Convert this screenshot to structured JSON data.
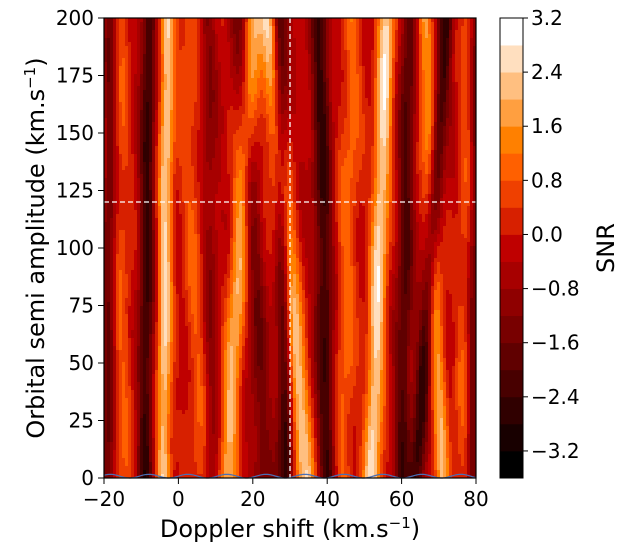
{
  "chart_data": {
    "type": "heatmap",
    "xlabel": "Doppler shift (km.s",
    "xlabel_sup": "−1",
    "xlabel_end": ")",
    "ylabel": "Orbital semi amplitude (km.s",
    "ylabel_sup": "−1",
    "ylabel_end": ")",
    "xlim": [
      -20,
      80
    ],
    "ylim": [
      0,
      200
    ],
    "x_ticks": [
      {
        "value": -20,
        "label": "−20"
      },
      {
        "value": 0,
        "label": "0"
      },
      {
        "value": 20,
        "label": "20"
      },
      {
        "value": 40,
        "label": "40"
      },
      {
        "value": 60,
        "label": "60"
      },
      {
        "value": 80,
        "label": "80"
      }
    ],
    "y_ticks": [
      {
        "value": 0,
        "label": "0"
      },
      {
        "value": 25,
        "label": "25"
      },
      {
        "value": 50,
        "label": "50"
      },
      {
        "value": 75,
        "label": "75"
      },
      {
        "value": 100,
        "label": "100"
      },
      {
        "value": 125,
        "label": "125"
      },
      {
        "value": 150,
        "label": "150"
      },
      {
        "value": 175,
        "label": "175"
      },
      {
        "value": 200,
        "label": "200"
      }
    ],
    "colorbar": {
      "label": "SNR",
      "colormap": "gist_heat",
      "min": -3.6,
      "max": 3.2,
      "levels": [
        -3.6,
        -3.2,
        -2.8,
        -2.4,
        -2.0,
        -1.6,
        -1.2,
        -0.8,
        -0.4,
        0.0,
        0.4,
        0.8,
        1.2,
        1.6,
        2.0,
        2.4,
        2.8,
        3.2
      ],
      "ticks": [
        {
          "value": 3.2,
          "label": "3.2"
        },
        {
          "value": 2.4,
          "label": "2.4"
        },
        {
          "value": 1.6,
          "label": "1.6"
        },
        {
          "value": 0.8,
          "label": "0.8"
        },
        {
          "value": 0.0,
          "label": "0.0"
        },
        {
          "value": -0.8,
          "label": "−0.8"
        },
        {
          "value": -1.6,
          "label": "−1.6"
        },
        {
          "value": -2.4,
          "label": "−2.4"
        },
        {
          "value": -3.2,
          "label": "−3.2"
        }
      ]
    },
    "crosshair": {
      "x": 30,
      "y": 120,
      "color": "#ffffff",
      "style": "dashed"
    },
    "bands": [
      {
        "x0": -4,
        "x1": -3,
        "width": 2.0,
        "amp": 2.6
      },
      {
        "x0": 13,
        "x1": 20,
        "width": 2.6,
        "amp": 2.3
      },
      {
        "x0": 34,
        "x1": 24,
        "width": 2.8,
        "amp": 2.7
      },
      {
        "x0": 52,
        "x1": 56,
        "width": 2.4,
        "amp": 2.8
      },
      {
        "x0": 71,
        "x1": 66,
        "width": 2.2,
        "amp": 2.0
      },
      {
        "x0": 6,
        "x1": 2,
        "width": 3.0,
        "amp": 1.0
      },
      {
        "x0": 44,
        "x1": 47,
        "width": 3.0,
        "amp": 1.2
      },
      {
        "x0": -15,
        "x1": -16,
        "width": 2.8,
        "amp": 1.0
      },
      {
        "x0": 76,
        "x1": 78,
        "width": 2.2,
        "amp": 0.9
      },
      {
        "x0": -9,
        "x1": -8,
        "width": 2.0,
        "amp": -2.2
      },
      {
        "x0": 29,
        "x1": 27,
        "width": 2.0,
        "amp": -2.6
      },
      {
        "x0": 40,
        "x1": 38,
        "width": 2.4,
        "amp": -2.2
      },
      {
        "x0": 60,
        "x1": 62,
        "width": 2.2,
        "amp": -1.8
      },
      {
        "x0": 64,
        "x1": 72,
        "width": 2.0,
        "amp": -2.3
      },
      {
        "x0": 23,
        "x1": 17,
        "width": 2.6,
        "amp": -1.3
      },
      {
        "x0": -19,
        "x1": -18,
        "width": 1.8,
        "amp": -1.6
      },
      {
        "x0": 9,
        "x1": 8,
        "width": 2.0,
        "amp": -0.9
      },
      {
        "x0": 79,
        "x1": 80,
        "width": 1.5,
        "amp": -1.3
      }
    ],
    "bottom_contour_color": "#4a6fb5"
  }
}
